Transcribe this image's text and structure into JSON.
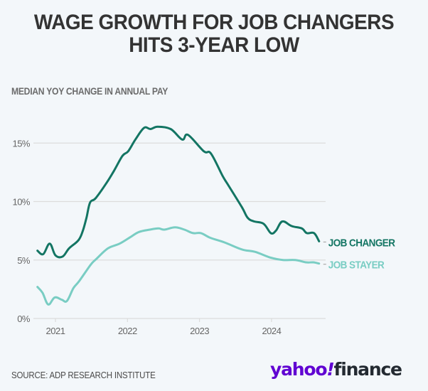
{
  "header": {
    "title_line1": "WAGE GROWTH FOR JOB CHANGERS",
    "title_line2": "HITS 3-YEAR LOW",
    "subtitle": "MEDIAN YOY CHANGE IN ANNUAL PAY"
  },
  "footer": {
    "source": "SOURCE: ADP RESEARCH INSTITUTE",
    "logo_yahoo": "yahoo",
    "logo_bang": "!",
    "logo_finance": "finance"
  },
  "colors": {
    "job_changer": "#137563",
    "job_stayer": "#79cdc3",
    "logo_purple": "#6001d2",
    "grid": "#dcdcdc",
    "axis_text": "#666666"
  },
  "chart_data": {
    "type": "line",
    "title": "WAGE GROWTH FOR JOB CHANGERS HITS 3-YEAR LOW",
    "subtitle": "MEDIAN YOY CHANGE IN ANNUAL PAY",
    "xlabel": "",
    "ylabel": "",
    "xlim": [
      2020.7,
      2024.75
    ],
    "ylim": [
      0,
      17
    ],
    "x_ticks": [
      2021,
      2022,
      2023,
      2024
    ],
    "x_tick_labels": [
      "2021",
      "2022",
      "2023",
      "2024"
    ],
    "y_ticks": [
      0,
      5,
      10,
      15
    ],
    "y_tick_labels": [
      "0%",
      "5%",
      "10%",
      "15%"
    ],
    "grid": "horizontal",
    "legend": "inline-right",
    "series": [
      {
        "name": "JOB CHANGER",
        "x": [
          2020.75,
          2020.83,
          2020.92,
          2021.0,
          2021.1,
          2021.19,
          2021.32,
          2021.38,
          2021.43,
          2021.48,
          2021.56,
          2021.71,
          2021.81,
          2021.93,
          2022.01,
          2022.11,
          2022.23,
          2022.32,
          2022.42,
          2022.6,
          2022.76,
          2022.84,
          2023.06,
          2023.16,
          2023.32,
          2023.41,
          2023.59,
          2023.67,
          2023.76,
          2023.89,
          2023.99,
          2024.06,
          2024.15,
          2024.28,
          2024.42,
          2024.49,
          2024.59,
          2024.66
        ],
        "values": [
          5.8,
          5.5,
          6.4,
          5.4,
          5.3,
          6.0,
          6.7,
          7.5,
          8.6,
          9.9,
          10.3,
          11.6,
          12.6,
          13.9,
          14.3,
          15.3,
          16.3,
          16.2,
          16.4,
          16.2,
          15.3,
          15.7,
          14.3,
          14.1,
          12.2,
          11.3,
          9.5,
          8.6,
          8.3,
          8.1,
          7.3,
          7.5,
          8.3,
          7.9,
          7.7,
          7.3,
          7.3,
          6.6
        ]
      },
      {
        "name": "JOB STAYER",
        "x": [
          2020.75,
          2020.82,
          2020.9,
          2020.99,
          2021.09,
          2021.16,
          2021.25,
          2021.33,
          2021.49,
          2021.57,
          2021.73,
          2021.89,
          2022.05,
          2022.16,
          2022.31,
          2022.43,
          2022.51,
          2022.66,
          2022.79,
          2022.91,
          2023.02,
          2023.15,
          2023.35,
          2023.59,
          2023.77,
          2023.99,
          2024.16,
          2024.33,
          2024.48,
          2024.58,
          2024.66
        ],
        "values": [
          2.7,
          2.2,
          1.2,
          1.8,
          1.6,
          1.5,
          2.6,
          3.2,
          4.6,
          5.1,
          6.0,
          6.4,
          7.0,
          7.4,
          7.6,
          7.7,
          7.6,
          7.8,
          7.6,
          7.3,
          7.3,
          6.9,
          6.5,
          5.9,
          5.7,
          5.2,
          5.0,
          5.0,
          4.8,
          4.8,
          4.7
        ]
      }
    ]
  }
}
